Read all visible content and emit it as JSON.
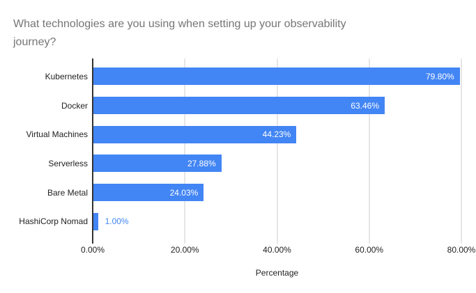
{
  "title": "What technologies are you using when setting up your observability journey?",
  "colors": {
    "bar": "#4285F4",
    "title_text": "#757575",
    "axis_text": "#222222",
    "gridline": "#cccccc",
    "baseline": "#333333",
    "value_label_inside": "#ffffff",
    "value_label_outside": "#4285F4",
    "background": "#ffffff"
  },
  "chart_data": {
    "type": "bar",
    "orientation": "horizontal",
    "title": "What technologies are you using when setting up your observability journey?",
    "categories": [
      "Kubernetes",
      "Docker",
      "Virtual Machines",
      "Serverless",
      "Bare Metal",
      "HashiCorp Nomad"
    ],
    "values": [
      79.8,
      63.46,
      44.23,
      27.88,
      24.03,
      1.0
    ],
    "value_labels": [
      "79.80%",
      "63.46%",
      "44.23%",
      "27.88%",
      "24.03%",
      "1.00%"
    ],
    "xlabel": "Percentage",
    "ylabel": "",
    "xlim": [
      0,
      80
    ],
    "x_ticks": [
      "0.00%",
      "20.00%",
      "40.00%",
      "60.00%",
      "80.00%"
    ],
    "grid": true,
    "legend": false
  }
}
